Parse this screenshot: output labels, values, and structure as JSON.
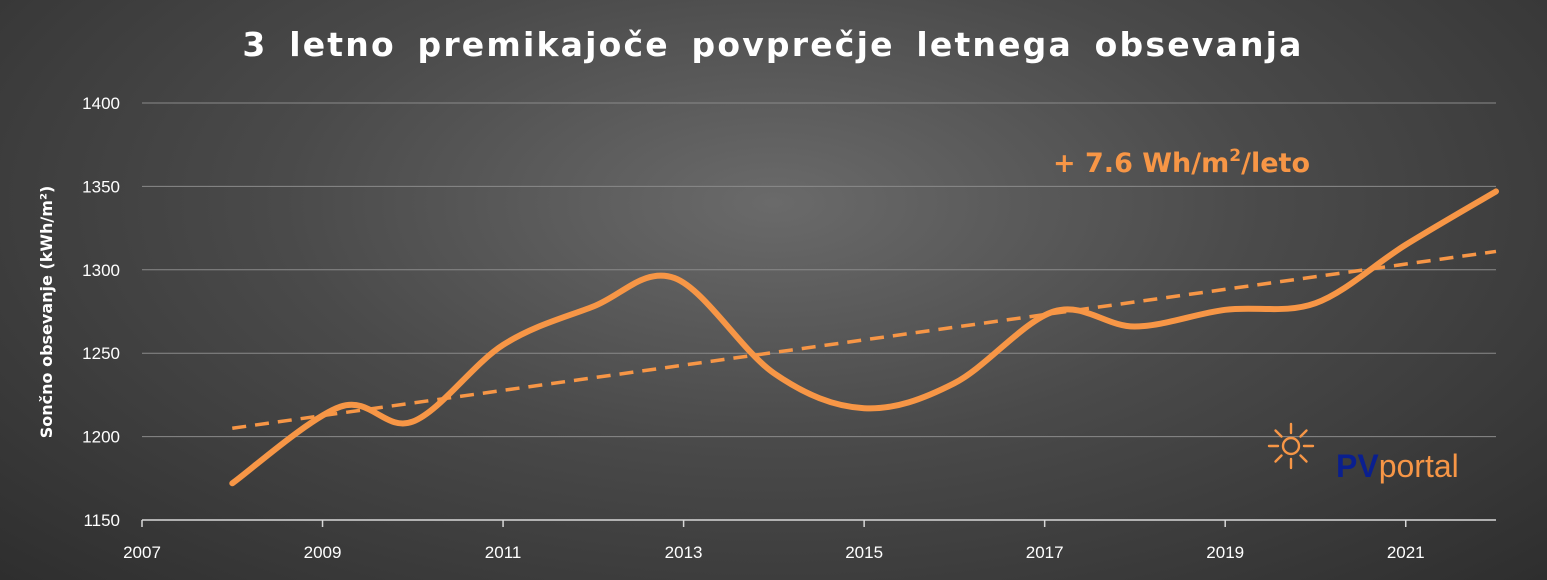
{
  "chart_data": {
    "type": "line",
    "title": "3 letno premikajoče povprečje letnega obsevanja",
    "ylabel": "Sončno obsevanje (kWh/m²)",
    "xlabel": "",
    "xlim": [
      2007,
      2022
    ],
    "ylim": [
      1150,
      1400
    ],
    "yticks": [
      1150,
      1200,
      1250,
      1300,
      1350,
      1400
    ],
    "xticks": [
      2007,
      2009,
      2011,
      2013,
      2015,
      2017,
      2019,
      2021
    ],
    "grid": "horizontal",
    "series": [
      {
        "name": "",
        "style": "solid",
        "color": "#f79646",
        "x": [
          2008,
          2009.2,
          2010,
          2011,
          2012,
          2012.9,
          2014,
          2015,
          2016,
          2017.1,
          2018,
          2019,
          2020,
          2021,
          2022
        ],
        "y": [
          1172,
          1218,
          1209,
          1255,
          1278,
          1295,
          1238,
          1217,
          1232,
          1275,
          1266,
          1276,
          1280,
          1315,
          1347
        ]
      },
      {
        "name": "",
        "style": "dashed",
        "color": "#f79646",
        "x": [
          2008,
          2022
        ],
        "y": [
          1205,
          1311
        ]
      }
    ],
    "annotations": [
      {
        "text_prefix": "+ 7.6 Wh/m",
        "text_sup": "2",
        "text_suffix": "/leto"
      }
    ]
  },
  "logo": {
    "icon": "sun-icon",
    "part1": "PV",
    "part2": "portal"
  }
}
